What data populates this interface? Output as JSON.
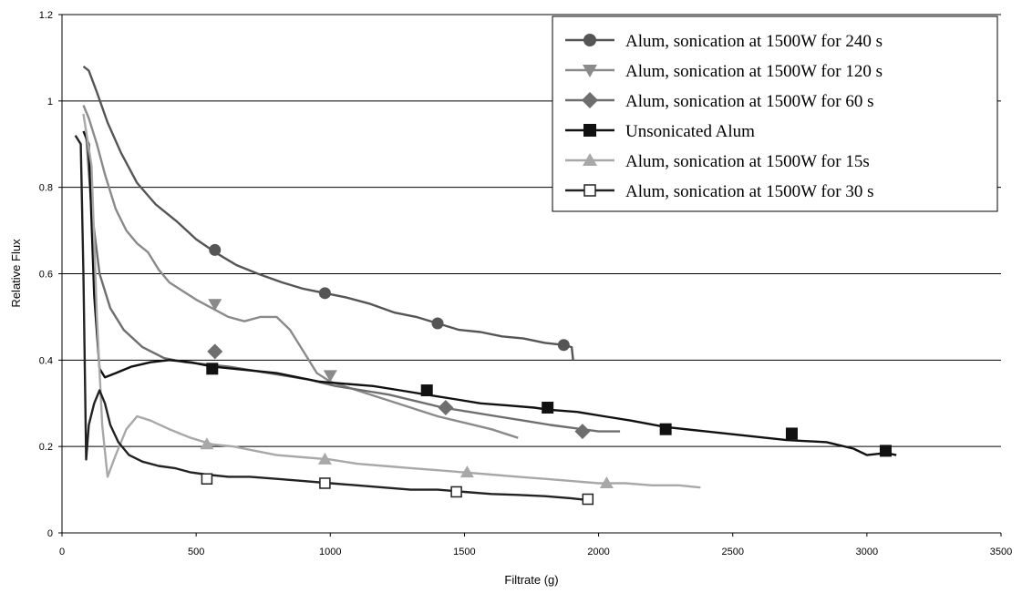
{
  "chart_data": {
    "type": "line",
    "title": "",
    "xlabel": "Filtrate (g)",
    "ylabel": "Relative Flux",
    "xlim": [
      0,
      3500
    ],
    "ylim": [
      0,
      1.2
    ],
    "x_ticks": [
      0,
      500,
      1000,
      1500,
      2000,
      2500,
      3000,
      3500
    ],
    "y_ticks": [
      0,
      0.2,
      0.4,
      0.6,
      0.8,
      1,
      1.2
    ],
    "x_tick_labels": [
      "0",
      "500",
      "1000",
      "1500",
      "2000",
      "2500",
      "3000",
      "3500"
    ],
    "y_tick_labels": [
      "0",
      "0.2",
      "0.4",
      "0.6",
      "0.8",
      "1",
      "1.2"
    ],
    "grid": "horizontal",
    "legend_position": "top-right",
    "series": [
      {
        "name": "Alum, sonication at 1500W for 240 s",
        "color": "#555555",
        "marker": "circle",
        "x": [
          80,
          100,
          130,
          170,
          220,
          280,
          350,
          430,
          500,
          570,
          650,
          730,
          820,
          900,
          980,
          1060,
          1150,
          1240,
          1320,
          1400,
          1480,
          1560,
          1640,
          1720,
          1800,
          1870,
          1900,
          1905
        ],
        "y": [
          1.08,
          1.07,
          1.02,
          0.95,
          0.88,
          0.81,
          0.76,
          0.72,
          0.68,
          0.65,
          0.62,
          0.6,
          0.58,
          0.565,
          0.555,
          0.545,
          0.53,
          0.51,
          0.5,
          0.485,
          0.47,
          0.465,
          0.455,
          0.45,
          0.44,
          0.435,
          0.43,
          0.4
        ],
        "markers": [
          [
            570,
            0.655
          ],
          [
            980,
            0.555
          ],
          [
            1400,
            0.485
          ],
          [
            1870,
            0.435
          ]
        ]
      },
      {
        "name": "Alum, sonication at 1500W for 120 s",
        "color": "#8a8a8a",
        "marker": "triangle-down",
        "x": [
          80,
          100,
          130,
          160,
          200,
          240,
          280,
          320,
          360,
          400,
          450,
          500,
          560,
          620,
          680,
          740,
          800,
          850,
          900,
          950,
          1000,
          1100,
          1200,
          1300,
          1400,
          1500,
          1600,
          1700
        ],
        "y": [
          0.99,
          0.96,
          0.9,
          0.83,
          0.75,
          0.7,
          0.67,
          0.65,
          0.61,
          0.58,
          0.56,
          0.54,
          0.52,
          0.5,
          0.49,
          0.5,
          0.5,
          0.47,
          0.42,
          0.37,
          0.35,
          0.33,
          0.31,
          0.29,
          0.27,
          0.255,
          0.24,
          0.22
        ],
        "markers": [
          [
            570,
            0.53
          ],
          [
            1000,
            0.365
          ]
        ]
      },
      {
        "name": "Alum, sonication at 1500W for 60 s",
        "color": "#6e6e6e",
        "marker": "diamond",
        "x": [
          90,
          110,
          140,
          180,
          230,
          300,
          380,
          460,
          540,
          620,
          720,
          820,
          920,
          1020,
          1120,
          1220,
          1320,
          1420,
          1520,
          1620,
          1720,
          1820,
          1940,
          2000,
          2080
        ],
        "y": [
          0.92,
          0.75,
          0.6,
          0.52,
          0.47,
          0.43,
          0.405,
          0.395,
          0.39,
          0.385,
          0.375,
          0.365,
          0.355,
          0.34,
          0.33,
          0.32,
          0.305,
          0.29,
          0.28,
          0.27,
          0.26,
          0.25,
          0.24,
          0.235,
          0.235
        ],
        "markers": [
          [
            570,
            0.42
          ],
          [
            1430,
            0.29
          ],
          [
            1940,
            0.235
          ]
        ]
      },
      {
        "name": "Unsonicated Alum",
        "color": "#111111",
        "marker": "square",
        "x": [
          80,
          100,
          120,
          140,
          160,
          200,
          260,
          330,
          400,
          480,
          560,
          640,
          720,
          800,
          880,
          960,
          1060,
          1160,
          1260,
          1360,
          1460,
          1560,
          1660,
          1760,
          1820,
          1920,
          2020,
          2120,
          2250,
          2400,
          2550,
          2700,
          2850,
          2950,
          3000,
          3070,
          3110
        ],
        "y": [
          0.93,
          0.9,
          0.55,
          0.38,
          0.36,
          0.37,
          0.385,
          0.395,
          0.4,
          0.395,
          0.385,
          0.38,
          0.375,
          0.37,
          0.36,
          0.35,
          0.345,
          0.34,
          0.33,
          0.32,
          0.31,
          0.3,
          0.295,
          0.29,
          0.285,
          0.28,
          0.27,
          0.26,
          0.245,
          0.235,
          0.225,
          0.215,
          0.21,
          0.195,
          0.18,
          0.185,
          0.18
        ],
        "markers": [
          [
            560,
            0.38
          ],
          [
            1360,
            0.33
          ],
          [
            1810,
            0.29
          ],
          [
            2250,
            0.24
          ],
          [
            2720,
            0.23
          ],
          [
            3070,
            0.19
          ]
        ]
      },
      {
        "name": "Alum, sonication at 1500W for 15s",
        "color": "#a8a8a8",
        "marker": "triangle-up",
        "x": [
          80,
          110,
          130,
          150,
          170,
          200,
          240,
          280,
          330,
          400,
          480,
          560,
          640,
          720,
          800,
          900,
          1000,
          1100,
          1200,
          1300,
          1400,
          1500,
          1600,
          1700,
          1800,
          1900,
          2000,
          2100,
          2200,
          2300,
          2380
        ],
        "y": [
          0.97,
          0.85,
          0.5,
          0.25,
          0.13,
          0.18,
          0.24,
          0.27,
          0.26,
          0.24,
          0.22,
          0.205,
          0.2,
          0.19,
          0.18,
          0.175,
          0.17,
          0.16,
          0.155,
          0.15,
          0.145,
          0.14,
          0.135,
          0.13,
          0.125,
          0.12,
          0.115,
          0.115,
          0.11,
          0.11,
          0.105
        ],
        "markers": [
          [
            540,
            0.205
          ],
          [
            980,
            0.17
          ],
          [
            1510,
            0.14
          ],
          [
            2030,
            0.115
          ]
        ]
      },
      {
        "name": "Alum, sonication at 1500W for 30 s",
        "color": "#222222",
        "marker": "square-open",
        "x": [
          50,
          70,
          80,
          90,
          100,
          120,
          140,
          160,
          180,
          210,
          250,
          300,
          360,
          420,
          480,
          540,
          620,
          700,
          800,
          900,
          1000,
          1100,
          1200,
          1300,
          1400,
          1500,
          1600,
          1700,
          1800,
          1900,
          1975
        ],
        "y": [
          0.92,
          0.9,
          0.6,
          0.17,
          0.25,
          0.3,
          0.33,
          0.3,
          0.25,
          0.21,
          0.18,
          0.165,
          0.155,
          0.15,
          0.14,
          0.135,
          0.13,
          0.13,
          0.125,
          0.12,
          0.115,
          0.11,
          0.105,
          0.1,
          0.1,
          0.095,
          0.09,
          0.088,
          0.085,
          0.08,
          0.075
        ],
        "markers": [
          [
            540,
            0.125
          ],
          [
            980,
            0.115
          ],
          [
            1470,
            0.095
          ],
          [
            1960,
            0.078
          ]
        ]
      }
    ]
  }
}
